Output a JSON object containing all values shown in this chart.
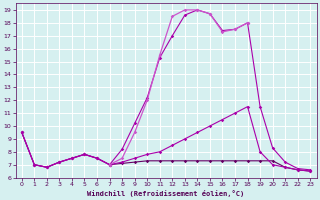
{
  "xlabel": "Windchill (Refroidissement éolien,°C)",
  "xlim": [
    -0.5,
    23.5
  ],
  "ylim": [
    6,
    19.5
  ],
  "xticks": [
    0,
    1,
    2,
    3,
    4,
    5,
    6,
    7,
    8,
    9,
    10,
    11,
    12,
    13,
    14,
    15,
    16,
    17,
    18,
    19,
    20,
    21,
    22,
    23
  ],
  "yticks": [
    6,
    7,
    8,
    9,
    10,
    11,
    12,
    13,
    14,
    15,
    16,
    17,
    18,
    19
  ],
  "bg_color": "#d6f0f0",
  "grid_color": "#ffffff",
  "line_color_purple": "#aa00aa",
  "line_color_dark": "#660066",
  "line_color_light": "#cc55cc",
  "series_peak_x": [
    0,
    1,
    2,
    3,
    4,
    5,
    6,
    7,
    8,
    9,
    10,
    11,
    12,
    13,
    14,
    15,
    16,
    17,
    18,
    19,
    20,
    21,
    22,
    23
  ],
  "series_peak_y": [
    9.5,
    7.0,
    6.8,
    7.2,
    7.5,
    7.8,
    7.5,
    7.0,
    8.2,
    10.2,
    12.2,
    15.3,
    17.0,
    18.6,
    19.0,
    18.7,
    17.4,
    17.5,
    18.0,
    11.5,
    8.3,
    7.2,
    6.7,
    6.6
  ],
  "series_rise_x": [
    0,
    1,
    2,
    3,
    4,
    5,
    6,
    7,
    8,
    9,
    10,
    11,
    12,
    13,
    14,
    15,
    16,
    17,
    18,
    19,
    20,
    21,
    22,
    23
  ],
  "series_rise_y": [
    9.5,
    7.0,
    6.8,
    7.2,
    7.5,
    7.8,
    7.5,
    7.0,
    7.2,
    7.5,
    7.8,
    8.0,
    8.5,
    9.0,
    9.5,
    10.0,
    10.5,
    11.0,
    11.5,
    8.0,
    7.0,
    6.8,
    6.6,
    6.5
  ],
  "series_flat_x": [
    0,
    1,
    2,
    3,
    4,
    5,
    6,
    7,
    8,
    9,
    10,
    11,
    12,
    13,
    14,
    15,
    16,
    17,
    18,
    19,
    20,
    21,
    22,
    23
  ],
  "series_flat_y": [
    9.5,
    7.0,
    6.8,
    7.2,
    7.5,
    7.8,
    7.5,
    7.0,
    7.1,
    7.2,
    7.3,
    7.3,
    7.3,
    7.3,
    7.3,
    7.3,
    7.3,
    7.3,
    7.3,
    7.3,
    7.3,
    6.8,
    6.6,
    6.5
  ],
  "series_top_x": [
    7,
    8,
    9,
    10,
    11,
    12,
    13,
    14,
    15,
    16,
    17,
    18
  ],
  "series_top_y": [
    7.0,
    7.5,
    9.5,
    12.0,
    15.5,
    18.5,
    19.0,
    19.0,
    18.7,
    17.3,
    17.5,
    18.0
  ]
}
